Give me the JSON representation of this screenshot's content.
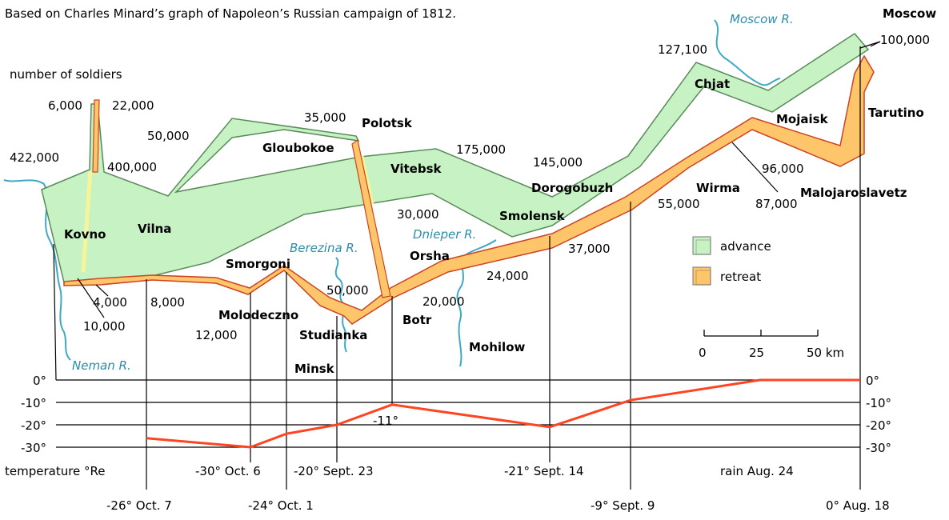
{
  "title": "Based on Charles Minard’s graph of Napoleon’s Russian campaign of 1812.",
  "colors": {
    "advance_fill": "#c6f2c4",
    "advance_stroke": "#5a8a5a",
    "retreat_fill": "#ffc56a",
    "retreat_stroke": "#cc4422",
    "temperature_line": "#ff4422",
    "river": "#3fa9c5",
    "crossing": "#f8f49c"
  },
  "legend": {
    "advance": "advance",
    "retreat": "retreat"
  },
  "scale": {
    "ticks": [
      "0",
      "25",
      "50 km"
    ]
  },
  "chart_data": {
    "type": "line",
    "title": "Based on Charles Minard’s graph of Napoleon’s Russian campaign of 1812.",
    "map": {
      "size_label": "number of soldiers",
      "cities": [
        "Moscow",
        "Tarutino",
        "Mojaisk",
        "Chjat",
        "Malojaroslavetz",
        "Wirma",
        "Dorogobuzh",
        "Smolensk",
        "Vitebsk",
        "Gloubokoe",
        "Polotsk",
        "Vilna",
        "Kovno",
        "Smorgoni",
        "Molodeczno",
        "Studianka",
        "Minsk",
        "Orsha",
        "Botr",
        "Mohilow"
      ],
      "rivers": [
        "Moscow R.",
        "Berezina R.",
        "Dnieper R.",
        "Neman R."
      ],
      "advance_counts": [
        "422,000",
        "400,000",
        "175,000",
        "145,000",
        "127,100",
        "100,000",
        "22,000",
        "50,000",
        "35,000",
        "30,000",
        "20,000"
      ],
      "retreat_counts": [
        "100,000",
        "96,000",
        "87,000",
        "55,000",
        "37,000",
        "24,000",
        "50,000",
        "12,000",
        "8,000",
        "10,000",
        "4,000",
        "6,000"
      ]
    },
    "temperature": {
      "ylabel": "temperature °Re",
      "ylim": [
        -30,
        0
      ],
      "yticks": [
        "0°",
        "-10°",
        "-20°",
        "-30°"
      ],
      "points": [
        {
          "label": "0° Aug. 18",
          "value": 0
        },
        {
          "label": "rain Aug. 24",
          "value": 0
        },
        {
          "label": "-9° Sept. 9",
          "value": -9
        },
        {
          "label": "-21° Sept. 14",
          "value": -21
        },
        {
          "label": "-11°",
          "value": -11
        },
        {
          "label": "-20° Sept. 23",
          "value": -20
        },
        {
          "label": "-24° Oct. 1",
          "value": -24
        },
        {
          "label": "-30° Oct. 6",
          "value": -30
        },
        {
          "label": "-26° Oct. 7",
          "value": -26
        }
      ]
    }
  }
}
